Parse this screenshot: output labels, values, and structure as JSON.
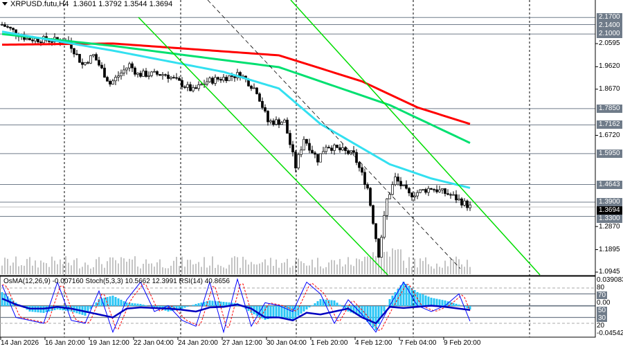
{
  "header": {
    "symbol": "XRPUSD.futu,H4",
    "ohlc": "1.3601 1.3792 1.3544 1.3694"
  },
  "indicator_header": "OsMA(12,26,9) -0.007160  Stoch(5,3,3) 10.5662 12.3991  RSI(14) 40.8656",
  "colors": {
    "up": "#000000",
    "ma_red": "#ff0000",
    "ma_green": "#00e070",
    "ma_cyan": "#33e0f0",
    "channel": "#00dd00",
    "hist": "#29c5f6",
    "stoch": "#0000ff",
    "signal": "#ff0000",
    "rsi": "#0000c0",
    "label_bg": "#6f7b89"
  },
  "price_axis": {
    "levels": [
      {
        "label": "2.1700",
        "price": 2.17
      },
      {
        "label": "2.1400",
        "price": 2.14
      },
      {
        "label": "2.1000",
        "price": 2.1
      },
      {
        "label": "1.7850",
        "price": 1.785
      },
      {
        "label": "1.7162",
        "price": 1.7162
      },
      {
        "label": "1.5950",
        "price": 1.595
      },
      {
        "label": "1.4643",
        "price": 1.4643
      },
      {
        "label": "1.3900",
        "price": 1.39
      },
      {
        "label": "1.3300",
        "price": 1.33
      }
    ],
    "current": {
      "label": "1.3694",
      "price": 1.3694
    },
    "ticks": [
      {
        "label": "2.0595",
        "price": 2.0595
      },
      {
        "label": "1.9620",
        "price": 1.962
      },
      {
        "label": "1.8670",
        "price": 1.867
      },
      {
        "label": "1.6720",
        "price": 1.672
      },
      {
        "label": "1.2870",
        "price": 1.287
      },
      {
        "label": "1.1895",
        "price": 1.1895
      },
      {
        "label": "1.0945",
        "price": 1.0945
      }
    ]
  },
  "indicator_axis": [
    {
      "label": "0.039083",
      "kind": "tick",
      "value": 0.039083
    },
    {
      "label": "80",
      "kind": "tick",
      "value": 80
    },
    {
      "label": "70",
      "kind": "box",
      "value": 70
    },
    {
      "label": "0.00",
      "kind": "tick",
      "value": 55
    },
    {
      "label": "50",
      "kind": "box",
      "value": 50
    },
    {
      "label": "30",
      "kind": "box",
      "value": 30
    },
    {
      "label": "20",
      "kind": "tick",
      "value": 20
    },
    {
      "label": "-0.04542",
      "kind": "tick",
      "value": -0.04542
    }
  ],
  "time_axis": [
    "14 Jan 2026",
    "16 Jan 20:00",
    "19 Jan 12:00",
    "22 Jan 04:00",
    "24 Jan 20:00",
    "27 Jan 12:00",
    "30 Jan 04:00",
    "1 Feb 20:00",
    "4 Feb 12:00",
    "7 Feb 04:00",
    "9 Feb 20:00"
  ],
  "chart_data": {
    "type": "candlestick",
    "bars": 170,
    "close_path": [
      [
        0,
        2.14
      ],
      [
        9,
        2.08
      ],
      [
        24,
        2.07
      ],
      [
        29,
        1.97
      ],
      [
        33,
        2.01
      ],
      [
        39,
        1.89
      ],
      [
        46,
        1.97
      ],
      [
        49,
        1.93
      ],
      [
        59,
        1.93
      ],
      [
        69,
        1.86
      ],
      [
        74,
        1.9
      ],
      [
        86,
        1.93
      ],
      [
        92,
        1.86
      ],
      [
        96,
        1.73
      ],
      [
        102,
        1.73
      ],
      [
        106,
        1.54
      ],
      [
        109,
        1.66
      ],
      [
        114,
        1.57
      ],
      [
        117,
        1.63
      ],
      [
        127,
        1.59
      ],
      [
        132,
        1.45
      ],
      [
        136,
        1.17
      ],
      [
        139,
        1.4
      ],
      [
        142,
        1.49
      ],
      [
        147,
        1.42
      ],
      [
        155,
        1.45
      ],
      [
        162,
        1.42
      ],
      [
        169,
        1.37
      ]
    ],
    "ma_red": [
      [
        0,
        2.055
      ],
      [
        40,
        2.06
      ],
      [
        100,
        2.01
      ],
      [
        130,
        1.9
      ],
      [
        150,
        1.79
      ],
      [
        169,
        1.72
      ]
    ],
    "ma_green": [
      [
        0,
        2.1
      ],
      [
        40,
        2.05
      ],
      [
        100,
        1.96
      ],
      [
        140,
        1.8
      ],
      [
        169,
        1.64
      ]
    ],
    "ma_cyan": [
      [
        0,
        2.11
      ],
      [
        40,
        2.03
      ],
      [
        80,
        1.94
      ],
      [
        100,
        1.87
      ],
      [
        115,
        1.72
      ],
      [
        140,
        1.55
      ],
      [
        155,
        1.49
      ],
      [
        169,
        1.45
      ]
    ],
    "stoch": [
      85,
      30,
      25,
      20,
      90,
      25,
      20,
      75,
      5,
      60,
      90,
      40,
      50,
      25,
      15,
      90,
      5,
      95,
      15,
      55,
      50,
      40,
      90,
      70,
      20,
      60,
      35,
      5,
      50,
      90,
      50,
      40,
      50,
      70,
      12
    ],
    "rsi": [
      62,
      52,
      45,
      45,
      48,
      45,
      40,
      35,
      30,
      45,
      47,
      46,
      45,
      43,
      40,
      47,
      48,
      52,
      45,
      30,
      30,
      25,
      38,
      35,
      40,
      45,
      30,
      20,
      48,
      46,
      48,
      50,
      48,
      45,
      42
    ],
    "osma": [
      0.02,
      0.005,
      -0.008,
      -0.01,
      -0.005,
      -0.008,
      -0.014,
      0.01,
      0.015,
      0.005,
      0.003,
      -0.002,
      -0.008,
      -0.004,
      0.003,
      0.008,
      0.006,
      0.004,
      -0.01,
      -0.02,
      -0.015,
      -0.02,
      -0.005,
      0.01,
      0.008,
      -0.008,
      -0.015,
      -0.035,
      0.01,
      0.035,
      0.02,
      0.012,
      0.008,
      0.002,
      -0.007
    ]
  }
}
